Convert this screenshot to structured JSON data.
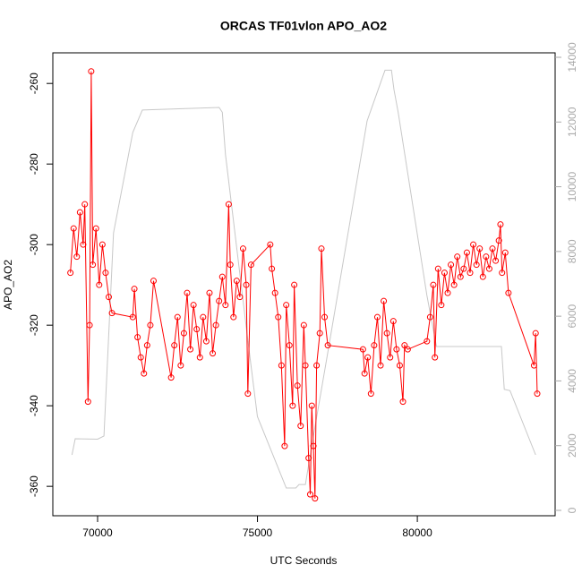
{
  "chart_data": {
    "type": "line",
    "title": "ORCAS TF01vlon APO_AO2",
    "x_label": "UTC Seconds",
    "y_label": "APO_AO2",
    "xlim": [
      68600,
      84310
    ],
    "ylim": [
      -367.3,
      -252.4
    ],
    "y2lim": [
      -166,
      14138
    ],
    "xticks": [
      70000,
      75000,
      80000
    ],
    "yticks": [
      -360,
      -340,
      -320,
      -300,
      -280,
      -260
    ],
    "y2ticks": [
      0,
      2000,
      4000,
      6000,
      8000,
      10000,
      12000,
      14000
    ],
    "series": [
      {
        "color": "#c8c8c8",
        "axis": "y2",
        "markers": false,
        "x": [
          69200,
          69300,
          70000,
          70200,
          70500,
          71100,
          71400,
          73800,
          73900,
          74000,
          74700,
          75000,
          75900,
          76200,
          76300,
          76500,
          76700,
          77170,
          78430,
          78990,
          79190,
          79270,
          79400,
          80300,
          80600,
          82630,
          82720,
          82900,
          83700
        ],
        "values": [
          1715,
          2214,
          2200,
          2300,
          8578,
          11677,
          12369,
          12450,
          12300,
          11000,
          5257,
          2900,
          692,
          692,
          800,
          800,
          2000,
          4700,
          12036,
          13600,
          13600,
          13000,
          12300,
          6640,
          5064,
          5064,
          3740,
          3700,
          1715
        ]
      },
      {
        "color": "#ff0000",
        "axis": "y",
        "markers": true,
        "x": [
          69150,
          69250,
          69350,
          69450,
          69550,
          69600,
          69700,
          69750,
          69800,
          69850,
          69950,
          70050,
          70150,
          70250,
          70350,
          70450,
          71100,
          71150,
          71250,
          71350,
          71450,
          71550,
          71650,
          71750,
          72300,
          72400,
          72500,
          72600,
          72700,
          72800,
          72900,
          73000,
          73100,
          73200,
          73300,
          73400,
          73500,
          73600,
          73700,
          73800,
          73900,
          74000,
          74100,
          74150,
          74250,
          74350,
          74450,
          74550,
          74650,
          74700,
          74800,
          75400,
          75450,
          75550,
          75650,
          75750,
          75850,
          75900,
          76000,
          76100,
          76150,
          76250,
          76350,
          76450,
          76500,
          76600,
          76650,
          76700,
          76750,
          76800,
          76850,
          76950,
          77000,
          77100,
          77200,
          78300,
          78350,
          78450,
          78550,
          78650,
          78750,
          78850,
          78950,
          79050,
          79150,
          79250,
          79350,
          79450,
          79550,
          79600,
          79700,
          80300,
          80400,
          80500,
          80550,
          80650,
          80750,
          80850,
          80950,
          81050,
          81150,
          81250,
          81350,
          81450,
          81550,
          81650,
          81750,
          81850,
          81950,
          82050,
          82150,
          82250,
          82350,
          82450,
          82550,
          82600,
          82650,
          82750,
          82850,
          83650,
          83700,
          83750
        ],
        "values": [
          -307,
          -296,
          -303,
          -292,
          -300,
          -290,
          -339,
          -320,
          -257,
          -305,
          -296,
          -310,
          -300,
          -307,
          -313,
          -317,
          -318,
          -311,
          -323,
          -328,
          -332,
          -325,
          -320,
          -309,
          -333,
          -325,
          -318,
          -330,
          -322,
          -312,
          -326,
          -315,
          -321,
          -328,
          -318,
          -324,
          -312,
          -327,
          -320,
          -314,
          -308,
          -315,
          -290,
          -305,
          -318,
          -309,
          -313,
          -301,
          -310,
          -337,
          -305,
          -300,
          -306,
          -312,
          -318,
          -330,
          -350,
          -315,
          -325,
          -340,
          -310,
          -335,
          -345,
          -320,
          -330,
          -353,
          -362,
          -340,
          -350,
          -363,
          -330,
          -322,
          -301,
          -318,
          -325,
          -326,
          -332,
          -328,
          -337,
          -325,
          -318,
          -330,
          -314,
          -322,
          -328,
          -319,
          -326,
          -330,
          -339,
          -325,
          -326,
          -324,
          -318,
          -310,
          -328,
          -306,
          -315,
          -307,
          -312,
          -305,
          -310,
          -303,
          -308,
          -306,
          -302,
          -307,
          -300,
          -305,
          -301,
          -308,
          -303,
          -306,
          -301,
          -304,
          -299,
          -295,
          -307,
          -302,
          -312,
          -330,
          -322,
          -337
        ]
      }
    ]
  }
}
